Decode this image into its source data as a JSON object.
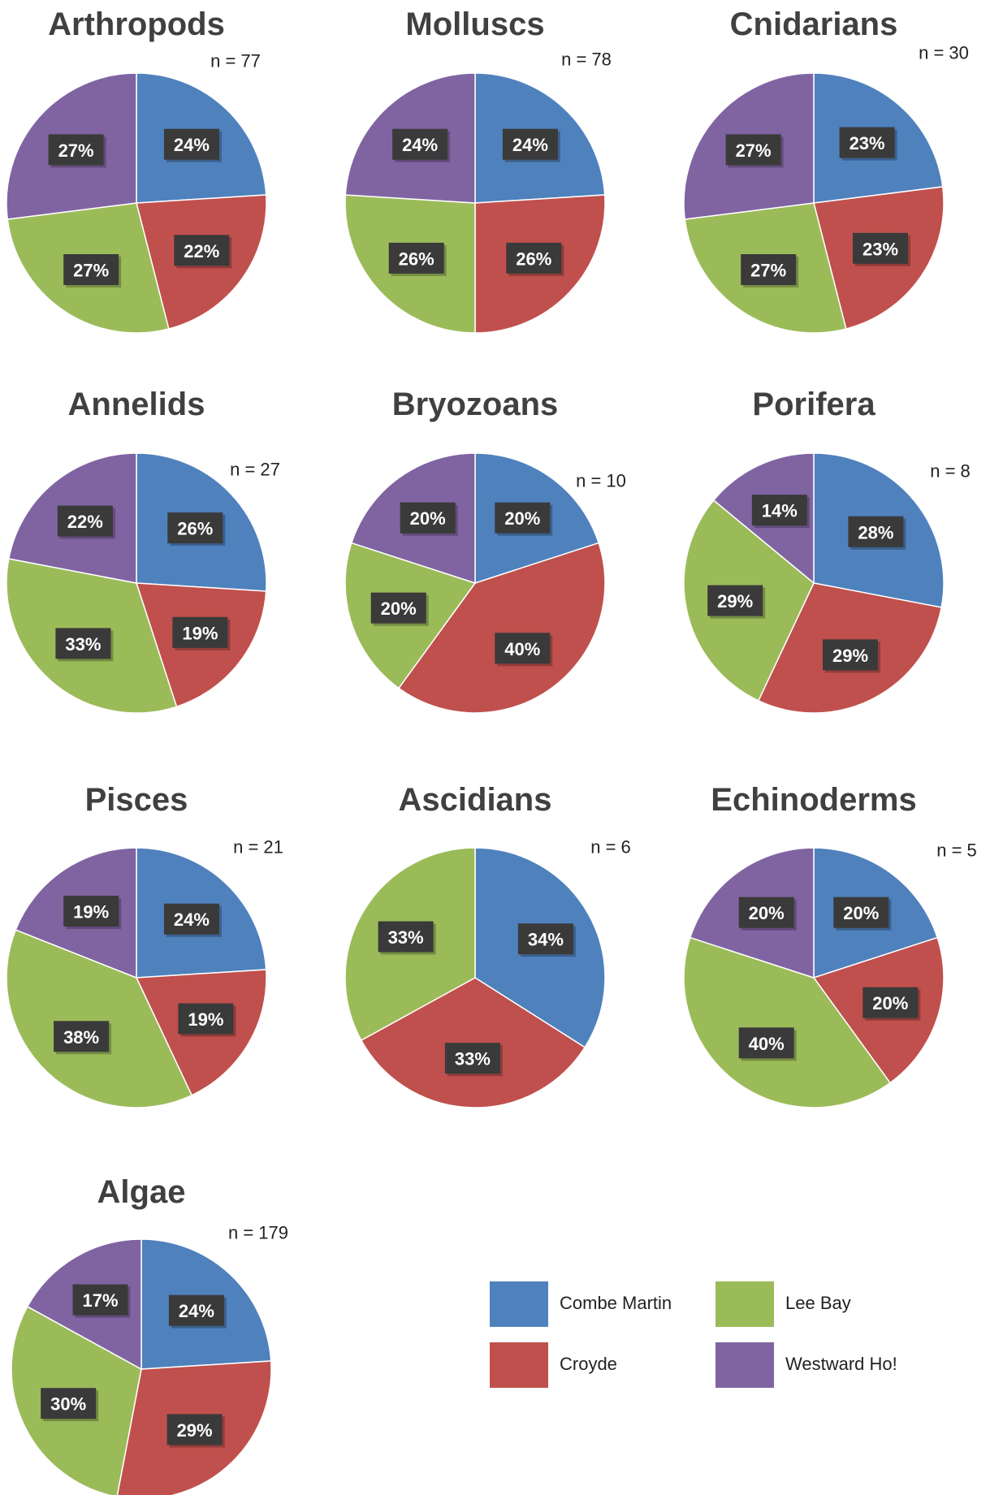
{
  "chart_data": [
    {
      "type": "pie",
      "title": "Arthropods",
      "note": "n = 77",
      "labels": [
        "Combe Martin",
        "Croyde",
        "Lee Bay",
        "Westward Ho!"
      ],
      "values": [
        24,
        22,
        27,
        27
      ],
      "data_labels": [
        "24%",
        "22%",
        "27%",
        "27%"
      ]
    },
    {
      "type": "pie",
      "title": "Molluscs",
      "note": "n = 78",
      "labels": [
        "Combe Martin",
        "Croyde",
        "Lee Bay",
        "Westward Ho!"
      ],
      "values": [
        24,
        26,
        26,
        24
      ],
      "data_labels": [
        "24%",
        "26%",
        "26%",
        "24%"
      ]
    },
    {
      "type": "pie",
      "title": "Cnidarians",
      "note": "n = 30",
      "labels": [
        "Combe Martin",
        "Croyde",
        "Lee Bay",
        "Westward Ho!"
      ],
      "values": [
        23,
        23,
        27,
        27
      ],
      "data_labels": [
        "23%",
        "23%",
        "27%",
        "27%"
      ]
    },
    {
      "type": "pie",
      "title": "Annelids",
      "note": "n = 27",
      "labels": [
        "Combe Martin",
        "Croyde",
        "Lee Bay",
        "Westward Ho!"
      ],
      "values": [
        26,
        19,
        33,
        22
      ],
      "data_labels": [
        "26%",
        "19%",
        "33%",
        "22%"
      ]
    },
    {
      "type": "pie",
      "title": "Bryozoans",
      "note": "n = 10",
      "labels": [
        "Combe Martin",
        "Croyde",
        "Lee Bay",
        "Westward Ho!"
      ],
      "values": [
        20,
        40,
        20,
        20
      ],
      "data_labels": [
        "20%",
        "40%",
        "20%",
        "20%"
      ]
    },
    {
      "type": "pie",
      "title": "Porifera",
      "note": "n = 8",
      "labels": [
        "Combe Martin",
        "Croyde",
        "Lee Bay",
        "Westward Ho!"
      ],
      "values": [
        28,
        29,
        29,
        14
      ],
      "data_labels": [
        "28%",
        "29%",
        "29%",
        "14%"
      ]
    },
    {
      "type": "pie",
      "title": "Pisces",
      "note": "n = 21",
      "labels": [
        "Combe Martin",
        "Croyde",
        "Lee Bay",
        "Westward Ho!"
      ],
      "values": [
        24,
        19,
        38,
        19
      ],
      "data_labels": [
        "24%",
        "19%",
        "38%",
        "19%"
      ]
    },
    {
      "type": "pie",
      "title": "Ascidians",
      "note": "n = 6",
      "labels": [
        "Combe Martin",
        "Croyde",
        "Lee Bay"
      ],
      "values": [
        34,
        33,
        33
      ],
      "data_labels": [
        "34%",
        "33%",
        "33%"
      ]
    },
    {
      "type": "pie",
      "title": "Echinoderms",
      "note": "n = 5",
      "labels": [
        "Combe Martin",
        "Croyde",
        "Lee Bay",
        "Westward Ho!"
      ],
      "values": [
        20,
        20,
        40,
        20
      ],
      "data_labels": [
        "20%",
        "20%",
        "40%",
        "20%"
      ]
    },
    {
      "type": "pie",
      "title": "Algae",
      "note": "n = 179",
      "labels": [
        "Combe Martin",
        "Croyde",
        "Lee Bay",
        "Westward Ho!"
      ],
      "values": [
        24,
        29,
        30,
        17
      ],
      "data_labels": [
        "24%",
        "29%",
        "30%",
        "17%"
      ]
    }
  ],
  "legend": {
    "items": [
      {
        "label": "Combe Martin",
        "color": "#4f81bd"
      },
      {
        "label": "Croyde",
        "color": "#c0504d"
      },
      {
        "label": "Lee Bay",
        "color": "#9bbb59"
      },
      {
        "label": "Westward Ho!",
        "color": "#8064a2"
      }
    ]
  },
  "colors": {
    "Combe Martin": "#4f81bd",
    "Croyde": "#c0504d",
    "Lee Bay": "#9bbb59",
    "Westward Ho!": "#8064a2",
    "label_box": "#3a3a3a",
    "title": "#404040"
  }
}
